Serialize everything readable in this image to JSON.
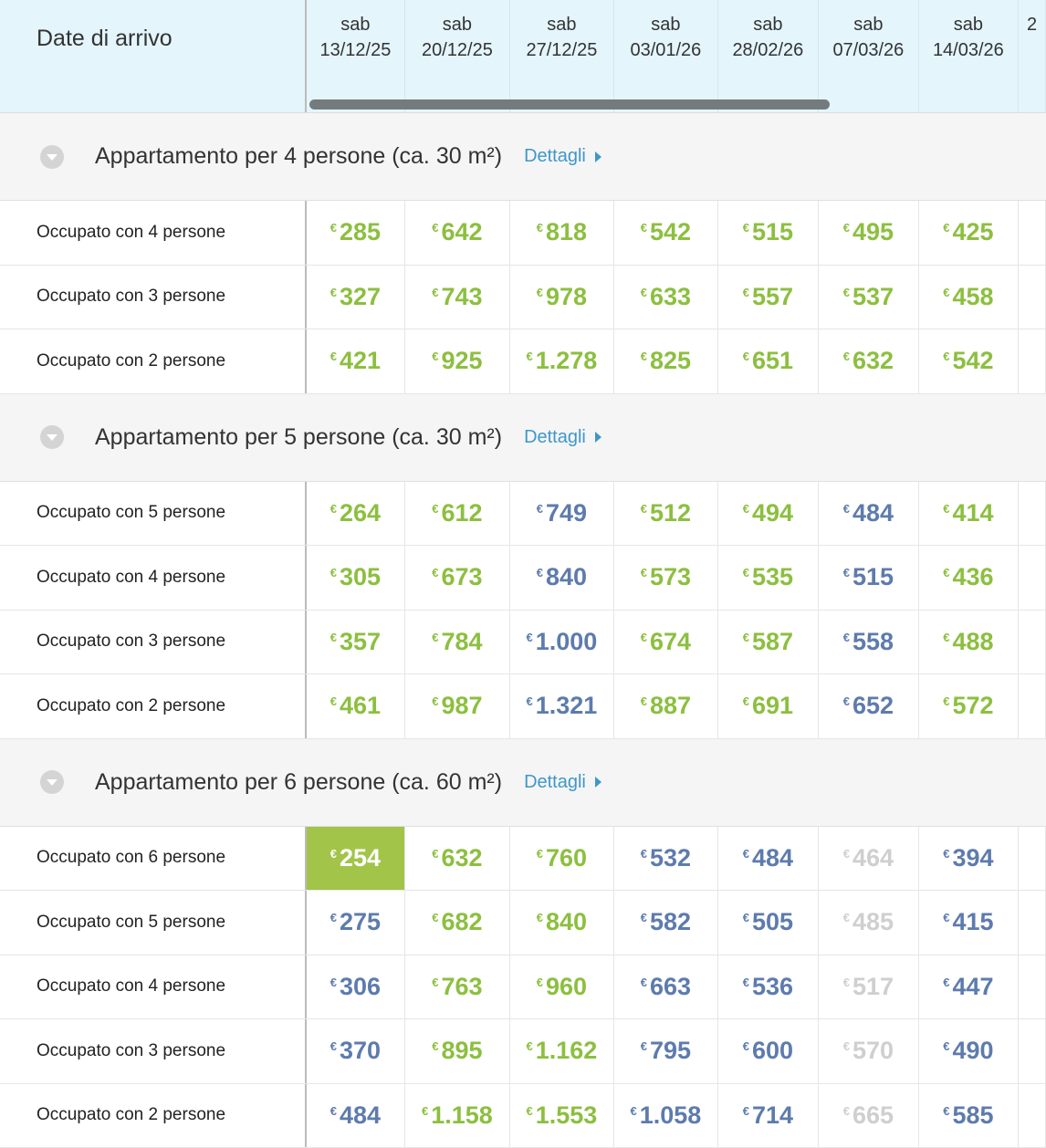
{
  "header": {
    "label": "Date di arrivo",
    "dates": [
      {
        "day": "sab",
        "date": "13/12/25"
      },
      {
        "day": "sab",
        "date": "20/12/25"
      },
      {
        "day": "sab",
        "date": "27/12/25"
      },
      {
        "day": "sab",
        "date": "03/01/26"
      },
      {
        "day": "sab",
        "date": "28/02/26"
      },
      {
        "day": "sab",
        "date": "07/03/26"
      },
      {
        "day": "sab",
        "date": "14/03/26"
      },
      {
        "day": "",
        "date": "2"
      }
    ]
  },
  "currency": "€",
  "details_label": "Dettagli",
  "colors": {
    "green": "#8cbf3f",
    "blue": "#5d7bad",
    "gray": "#cfcfcf",
    "highlight": "#a2c449",
    "link": "#3f97c8"
  },
  "groups": [
    {
      "title": "Appartamento per 4 persone (ca. 30 m²)",
      "rows": [
        {
          "label": "Occupato con 4 persone",
          "prices": [
            "285",
            "642",
            "818",
            "542",
            "515",
            "495",
            "425"
          ],
          "status": "ggggggg"
        },
        {
          "label": "Occupato con 3 persone",
          "prices": [
            "327",
            "743",
            "978",
            "633",
            "557",
            "537",
            "458"
          ],
          "status": "ggggggg"
        },
        {
          "label": "Occupato con 2 persone",
          "prices": [
            "421",
            "925",
            "1.278",
            "825",
            "651",
            "632",
            "542"
          ],
          "status": "ggggggg"
        }
      ]
    },
    {
      "title": "Appartamento per 5 persone (ca. 30 m²)",
      "rows": [
        {
          "label": "Occupato con 5 persone",
          "prices": [
            "264",
            "612",
            "749",
            "512",
            "494",
            "484",
            "414"
          ],
          "status": "ggbggbg"
        },
        {
          "label": "Occupato con 4 persone",
          "prices": [
            "305",
            "673",
            "840",
            "573",
            "535",
            "515",
            "436"
          ],
          "status": "ggbggbg"
        },
        {
          "label": "Occupato con 3 persone",
          "prices": [
            "357",
            "784",
            "1.000",
            "674",
            "587",
            "558",
            "488"
          ],
          "status": "ggbggbg"
        },
        {
          "label": "Occupato con 2 persone",
          "prices": [
            "461",
            "987",
            "1.321",
            "887",
            "691",
            "652",
            "572"
          ],
          "status": "ggbggbg"
        }
      ]
    },
    {
      "title": "Appartamento per 6 persone (ca. 60 m²)",
      "rows": [
        {
          "label": "Occupato con 6 persone",
          "prices": [
            "254",
            "632",
            "760",
            "532",
            "484",
            "464",
            "394"
          ],
          "status": "hggbbxb"
        },
        {
          "label": "Occupato con 5 persone",
          "prices": [
            "275",
            "682",
            "840",
            "582",
            "505",
            "485",
            "415"
          ],
          "status": "bggbbxb"
        },
        {
          "label": "Occupato con 4 persone",
          "prices": [
            "306",
            "763",
            "960",
            "663",
            "536",
            "517",
            "447"
          ],
          "status": "bggbbxb"
        },
        {
          "label": "Occupato con 3 persone",
          "prices": [
            "370",
            "895",
            "1.162",
            "795",
            "600",
            "570",
            "490"
          ],
          "status": "bggbbxb"
        },
        {
          "label": "Occupato con 2 persone",
          "prices": [
            "484",
            "1.158",
            "1.553",
            "1.058",
            "714",
            "665",
            "585"
          ],
          "status": "bggbbxb"
        }
      ]
    }
  ]
}
